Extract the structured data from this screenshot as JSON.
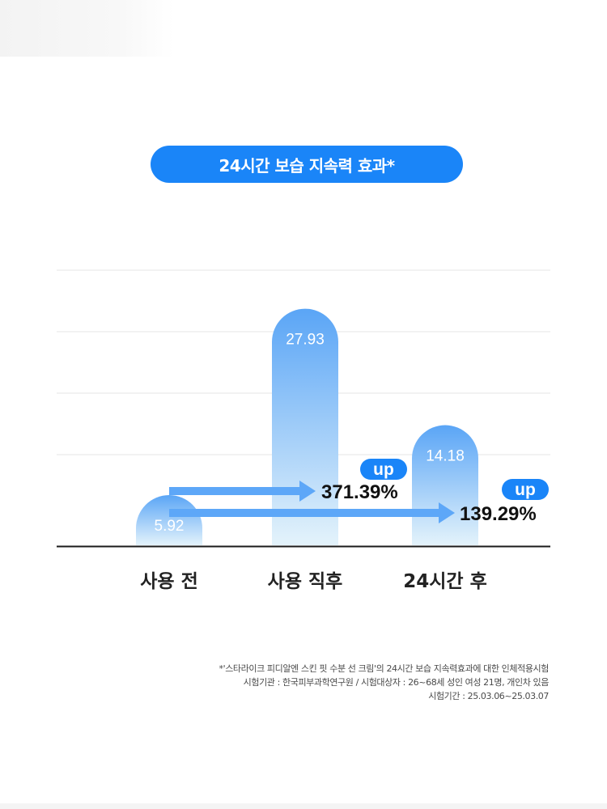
{
  "chart_data": {
    "type": "bar",
    "title": "24시간 보습 지속력 효과*",
    "categories": [
      "사용 전",
      "사용 직후",
      "24시간 후"
    ],
    "values": [
      5.92,
      27.93,
      14.18
    ],
    "value_labels": [
      "5.92",
      "27.93",
      "14.18"
    ],
    "ylim": [
      0,
      30
    ],
    "grid": true,
    "annotations": [
      {
        "badge": "up",
        "text": "371.39%",
        "from": "사용 전",
        "to": "사용 직후"
      },
      {
        "badge": "up",
        "text": "139.29%",
        "from": "사용 전",
        "to": "24시간 후"
      }
    ],
    "colors": {
      "bar_top": "#5aa5f6",
      "bar_bottom": "#e4f3fb",
      "arrow": "#5da7f8",
      "badge": "#1a85f8",
      "pill": "#1a85f8"
    }
  },
  "footnote": [
    "*'스타라이크 피디알엔 스킨 핏 수분 선 크림'의 24시간 보습 지속력효과에 대한 인체적용시험",
    "시험기관 : 한국피부과학연구원 / 시험대상자 : 26~68세 성인 여성 21명, 개인차 있음",
    "시험기간 : 25.03.06~25.03.07"
  ]
}
